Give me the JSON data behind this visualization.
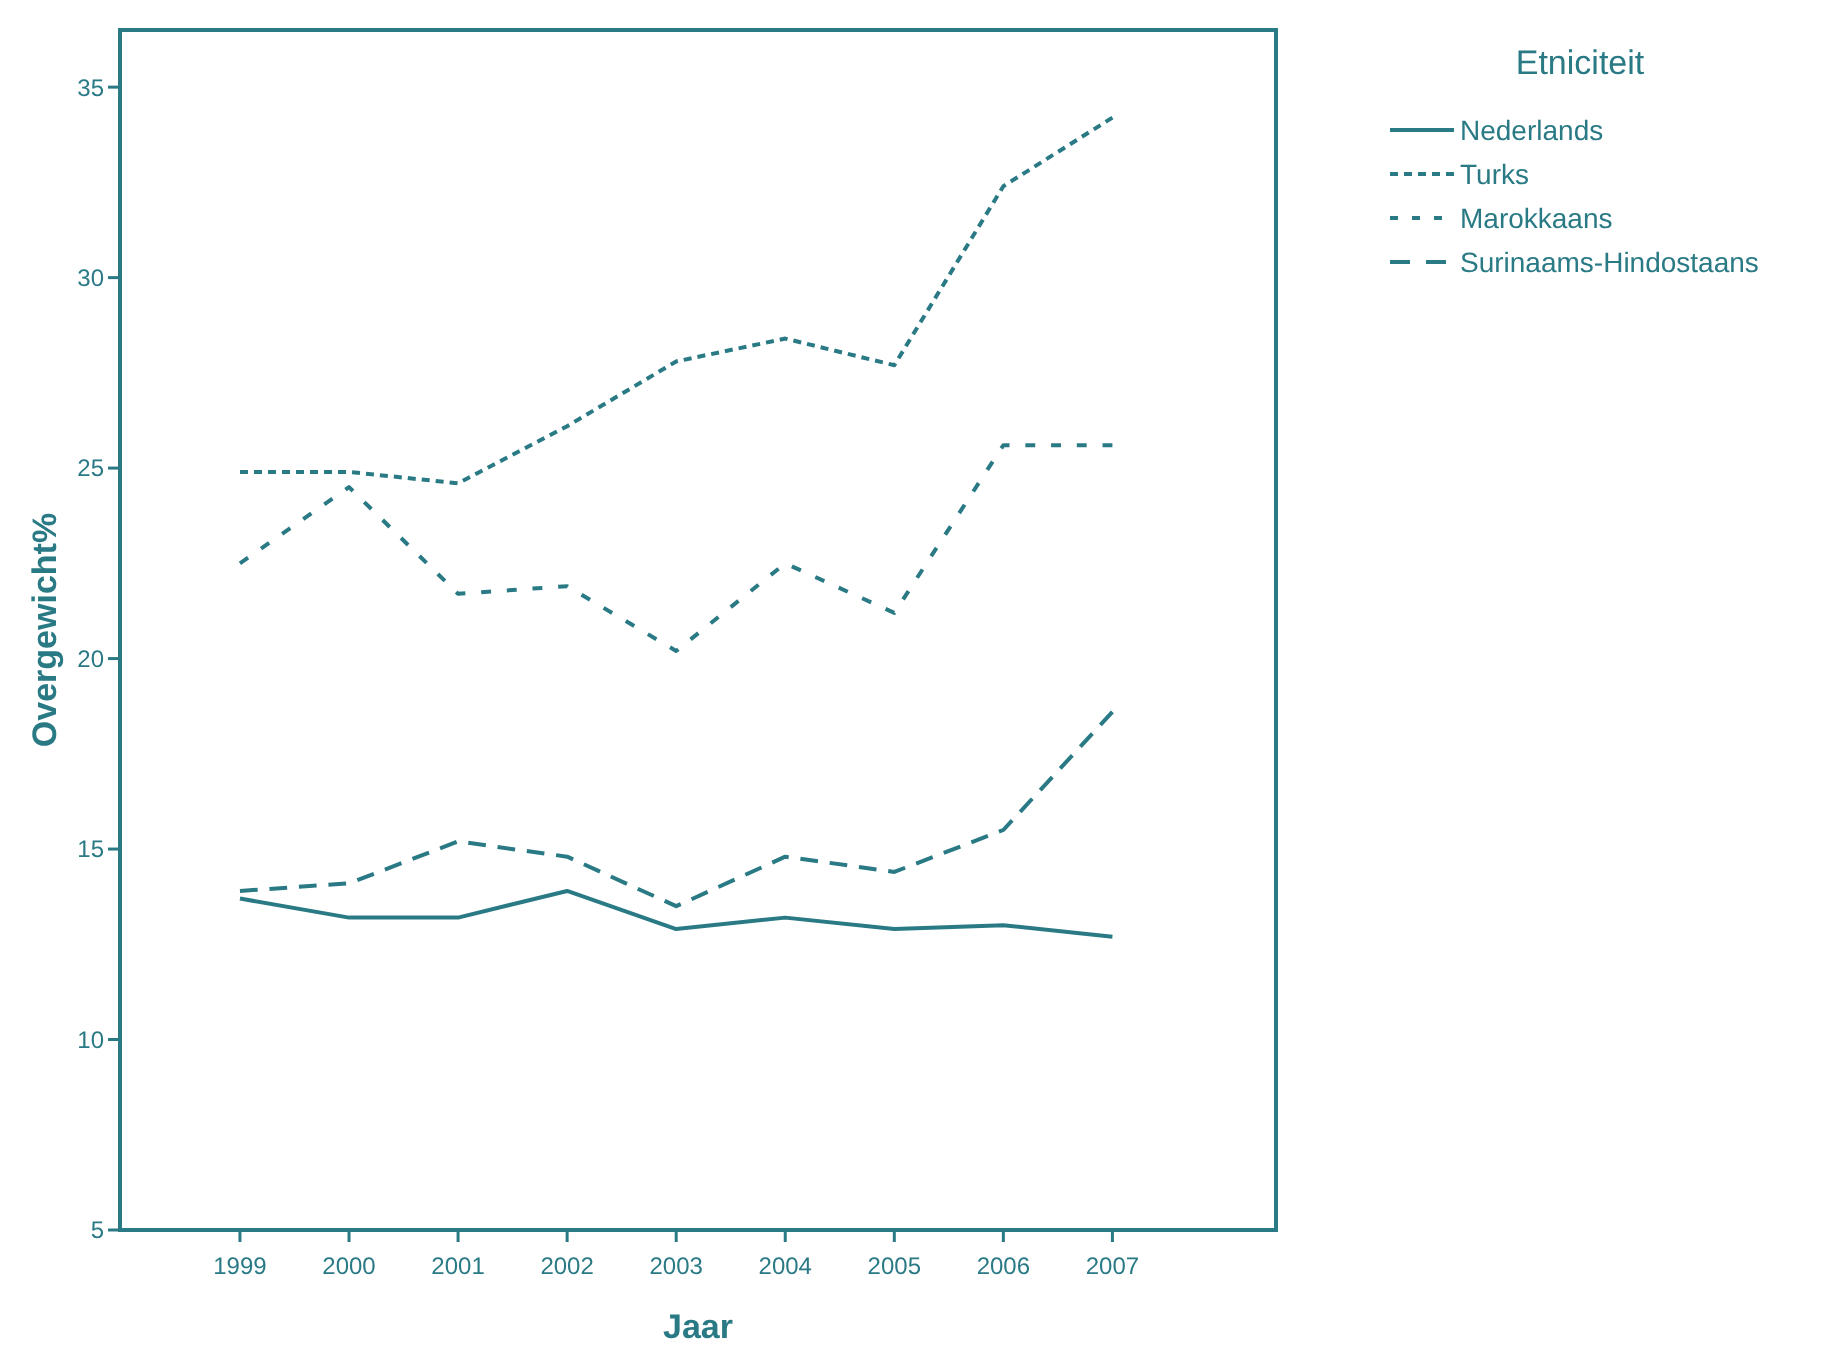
{
  "chart_data": {
    "type": "line",
    "xlabel": "Jaar",
    "ylabel": "Overgewicht%",
    "legend_title": "Etniciteit",
    "legend": "right",
    "grid": false,
    "x": [
      1999,
      2000,
      2001,
      2002,
      2003,
      2004,
      2005,
      2006,
      2007
    ],
    "xlim": [
      1997.9,
      2008.5
    ],
    "xticks": [
      1999,
      2000,
      2001,
      2002,
      2003,
      2004,
      2005,
      2006,
      2007
    ],
    "ylim": [
      5,
      36.5
    ],
    "yticks": [
      5,
      10,
      15,
      20,
      25,
      30,
      35
    ],
    "series": [
      {
        "name": "Nederlands",
        "color": "#2a7a85",
        "line_style": "solid",
        "values": [
          13.7,
          13.2,
          13.2,
          13.9,
          12.9,
          13.2,
          12.9,
          13.0,
          12.7
        ]
      },
      {
        "name": "Turks",
        "color": "#2a7a85",
        "line_style": "dotted",
        "values": [
          24.9,
          24.9,
          24.6,
          26.1,
          27.8,
          28.4,
          27.7,
          32.4,
          34.2
        ]
      },
      {
        "name": "Marokkaans",
        "color": "#2a7a85",
        "line_style": "dashdot",
        "values": [
          22.5,
          24.5,
          21.7,
          21.9,
          20.2,
          22.5,
          21.2,
          25.6,
          25.6
        ]
      },
      {
        "name": "Surinaams-Hindostaans",
        "color": "#2a7a85",
        "line_style": "dashed",
        "values": [
          13.9,
          14.1,
          15.2,
          14.8,
          13.5,
          14.8,
          14.4,
          15.5,
          18.6
        ]
      }
    ]
  }
}
